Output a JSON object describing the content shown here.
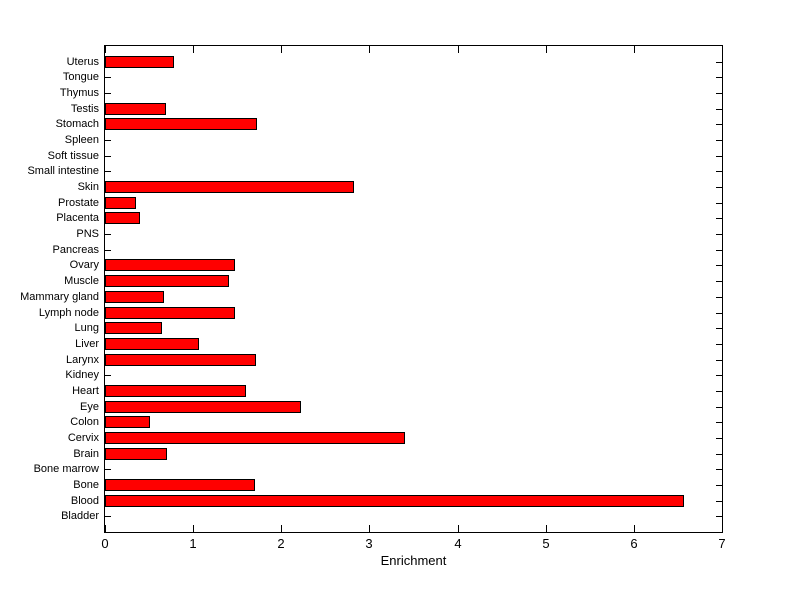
{
  "chart_data": {
    "type": "bar",
    "orientation": "horizontal",
    "title": "",
    "xlabel": "Enrichment",
    "ylabel": "",
    "categories_order": "top-to-bottom",
    "categories": [
      "Uterus",
      "Tongue",
      "Thymus",
      "Testis",
      "Stomach",
      "Spleen",
      "Soft tissue",
      "Small intestine",
      "Skin",
      "Prostate",
      "Placenta",
      "PNS",
      "Pancreas",
      "Ovary",
      "Muscle",
      "Mammary gland",
      "Lymph node",
      "Lung",
      "Liver",
      "Larynx",
      "Kidney",
      "Heart",
      "Eye",
      "Colon",
      "Cervix",
      "Brain",
      "Bone marrow",
      "Bone",
      "Blood",
      "Bladder"
    ],
    "values": [
      0.78,
      0,
      0,
      0.69,
      1.73,
      0,
      0,
      0,
      2.83,
      0.35,
      0.4,
      0,
      0,
      1.47,
      1.41,
      0.67,
      1.47,
      0.65,
      1.07,
      1.71,
      0,
      1.6,
      2.22,
      0.51,
      3.4,
      0.7,
      0,
      1.7,
      6.57,
      0
    ],
    "xlim": [
      0,
      7
    ],
    "xticks": [
      "0",
      "1",
      "2",
      "3",
      "4",
      "5",
      "6",
      "7"
    ],
    "bar_color": "#FF0000",
    "bar_edge_color": "#000000",
    "axis_color": "#000000",
    "background_color": "#FFFFFF",
    "grid": false,
    "legend": null
  }
}
